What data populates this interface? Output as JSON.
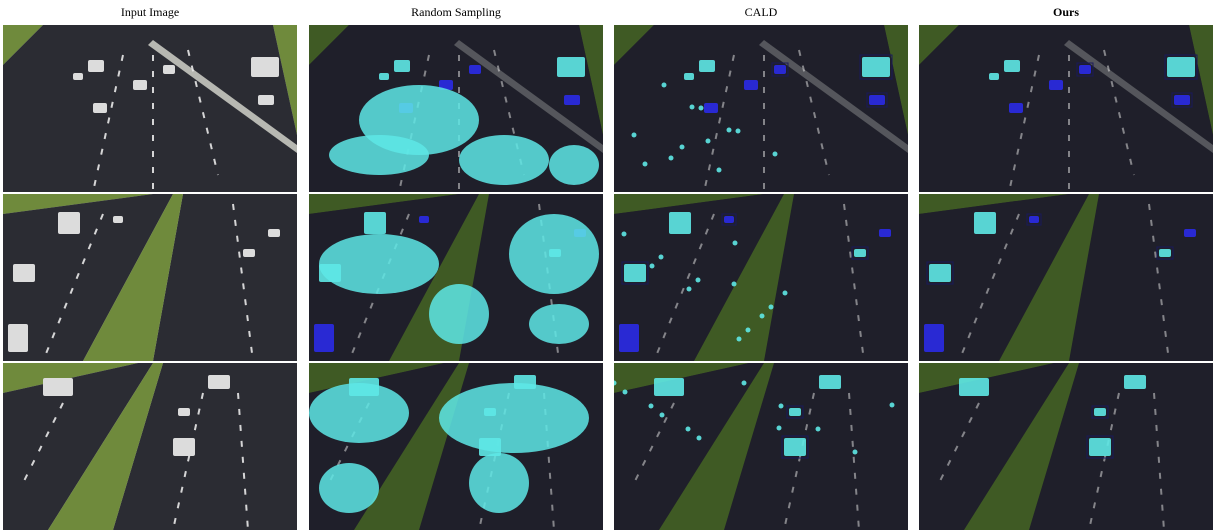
{
  "columns": [
    {
      "title": "Input Image",
      "bold": false,
      "overlay": "none"
    },
    {
      "title": "Random Sampling",
      "bold": false,
      "overlay": "dense"
    },
    {
      "title": "CALD",
      "bold": false,
      "overlay": "medium"
    },
    {
      "title": "Ours",
      "bold": true,
      "overlay": "clean"
    }
  ],
  "rows": 3,
  "colors": {
    "background": "#ffffff",
    "road": "#2b2c33",
    "road_processed": "#1f1f2a",
    "grass": "#6f8a3c",
    "grass_dark": "#3f5a24",
    "sky": "#c8d2c8",
    "lane_marking": "#e8e8e8",
    "cyan_mask": "#5ee8e6",
    "blue_mask": "#2a2ae6",
    "box_outline": "#1a1a5a"
  }
}
